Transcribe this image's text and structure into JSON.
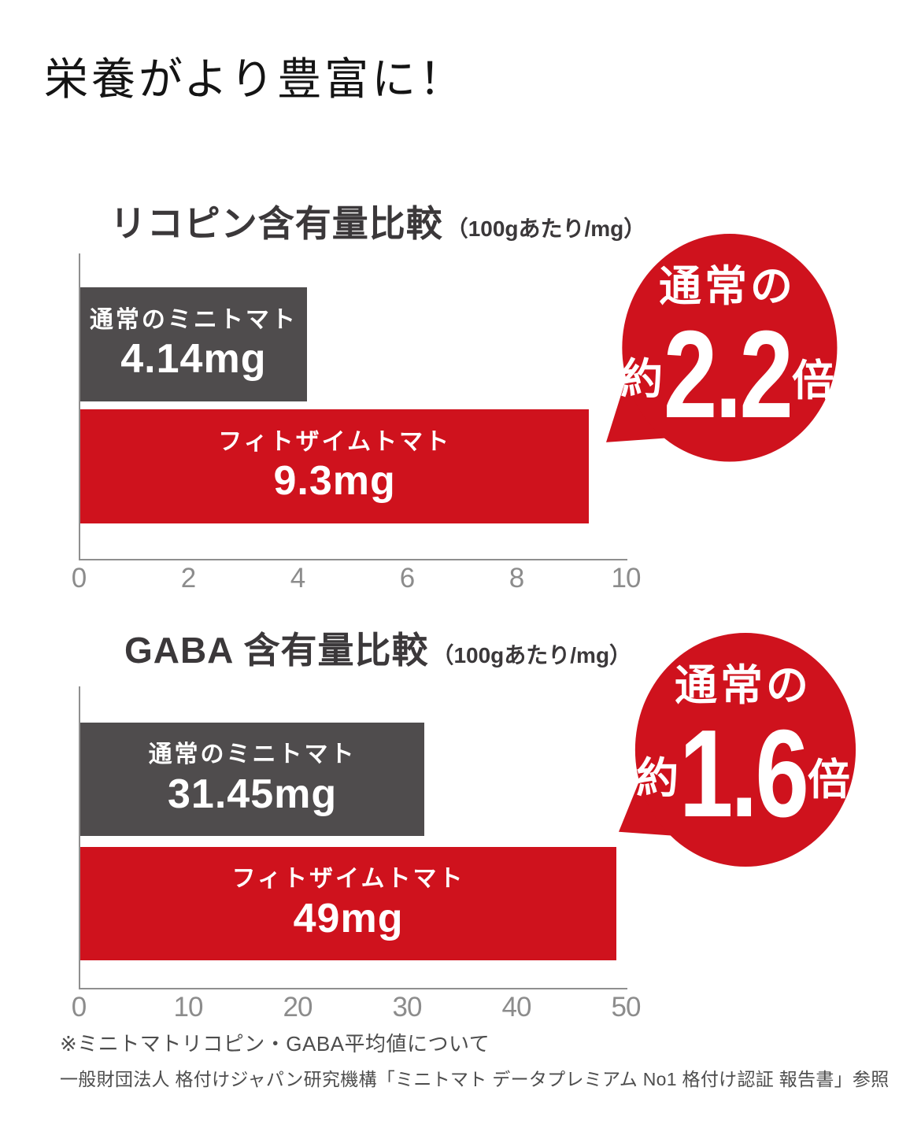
{
  "page": {
    "title": "栄養がより豊富に！"
  },
  "colors": {
    "badge_red": "#cf121d",
    "bar_red": "#cf121d",
    "bar_gray": "#4f4c4d",
    "heading_gray": "#3b383a",
    "axis_gray": "#8f8f8f",
    "badge_text": "#ffffff"
  },
  "chart_data": [
    {
      "type": "bar",
      "orientation": "horizontal",
      "title": "リコピン含有量比較",
      "unit_note": "（100gあたり/mg）",
      "categories": [
        "通常のミニトマト",
        "フィトザイムトマト"
      ],
      "values": [
        4.14,
        9.3
      ],
      "value_labels": [
        "4.14mg",
        "9.3mg"
      ],
      "bar_colors": [
        "#4f4c4d",
        "#cf121d"
      ],
      "xlim": [
        0,
        10
      ],
      "tick_labels": [
        "0",
        "2",
        "4",
        "6",
        "8",
        "10"
      ],
      "grid": false,
      "legend": false,
      "badge": {
        "line1": "通常の",
        "approx": "約",
        "number": "2.2",
        "suffix": "倍"
      }
    },
    {
      "type": "bar",
      "orientation": "horizontal",
      "title": "GABA 含有量比較",
      "unit_note": "（100gあたり/mg）",
      "categories": [
        "通常のミニトマト",
        "フィトザイムトマト"
      ],
      "values": [
        31.45,
        49
      ],
      "value_labels": [
        "31.45mg",
        "49mg"
      ],
      "bar_colors": [
        "#4f4c4d",
        "#cf121d"
      ],
      "xlim": [
        0,
        50
      ],
      "tick_labels": [
        "0",
        "10",
        "20",
        "30",
        "40",
        "50"
      ],
      "grid": false,
      "legend": false,
      "badge": {
        "line1": "通常の",
        "approx": "約",
        "number": "1.6",
        "suffix": "倍"
      }
    }
  ],
  "footnote": {
    "line1": "※ミニトマトリコピン・GABA平均値について",
    "line2": "一般財団法人 格付けジャパン研究機構「ミニトマト データプレミアム No1 格付け認証 報告書」参照"
  }
}
